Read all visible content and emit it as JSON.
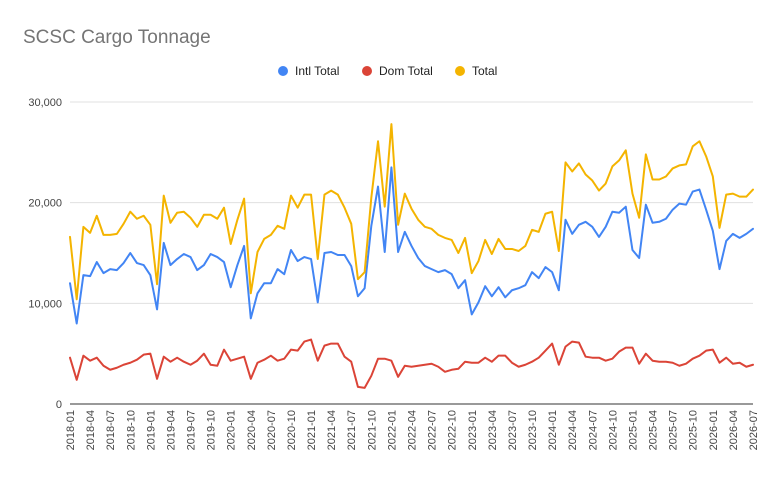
{
  "chart_data": {
    "type": "line",
    "title": "SCSC Cargo Tonnage",
    "xlabel": "",
    "ylabel": "",
    "ylim": [
      0,
      30000
    ],
    "yticks": [
      0,
      10000,
      20000,
      30000
    ],
    "ytick_labels": [
      "0",
      "10,000",
      "20,000",
      "30,000"
    ],
    "grid": true,
    "legend_position": "top-center",
    "x_start": "2018-01",
    "xtick_labels": [
      "2018-01",
      "2018-04",
      "2018-07",
      "2018-10",
      "2019-01",
      "2019-04",
      "2019-07",
      "2019-10",
      "2020-01",
      "2020-04",
      "2020-07",
      "2020-10",
      "2021-01",
      "2021-04",
      "2021-07",
      "2021-10",
      "2022-01",
      "2022-04",
      "2022-07",
      "2022-10",
      "2023-01",
      "2023-04",
      "2023-07",
      "2023-10",
      "2024-01",
      "2024-04",
      "2024-07",
      "2024-10",
      "2025-01",
      "2025-04",
      "2025-07",
      "2025-10",
      "2026-01",
      "2026-04",
      "2026-07"
    ],
    "series": [
      {
        "name": "Intl Total",
        "color": "#4285f4",
        "values": [
          12000,
          8000,
          12800,
          12700,
          14100,
          13000,
          13400,
          13300,
          14000,
          15000,
          14000,
          13800,
          12800,
          9400,
          16000,
          13800,
          14400,
          14900,
          14600,
          13300,
          13800,
          14900,
          14600,
          14100,
          11600,
          13800,
          15700,
          8500,
          11000,
          12000,
          12000,
          13400,
          12900,
          15300,
          14200,
          14600,
          14400,
          10100,
          15000,
          15100,
          14800,
          14800,
          13700,
          10700,
          11500,
          17700,
          21600,
          15100,
          23500,
          15100,
          17100,
          15700,
          14500,
          13700,
          13400,
          13100,
          13300,
          12900,
          11500,
          12300,
          8900,
          10100,
          11700,
          10700,
          11600,
          10600,
          11300,
          11500,
          11800,
          13100,
          12500,
          13600,
          13100,
          11300,
          18300,
          16900,
          17800,
          18100,
          17600,
          16600,
          17600,
          19100,
          19000,
          19600,
          15300,
          14500,
          19800,
          18000,
          18100,
          18400,
          19300,
          19900,
          19800,
          21100,
          21300,
          19300,
          17200,
          13400,
          16200,
          16900,
          16500,
          16900,
          17400
        ]
      },
      {
        "name": "Dom Total",
        "color": "#db4437",
        "values": [
          4600,
          2400,
          4800,
          4300,
          4600,
          3800,
          3400,
          3600,
          3900,
          4100,
          4400,
          4900,
          5000,
          2500,
          4700,
          4200,
          4600,
          4200,
          3900,
          4300,
          5000,
          3900,
          3800,
          5400,
          4300,
          4500,
          4700,
          2500,
          4100,
          4400,
          4800,
          4300,
          4500,
          5400,
          5300,
          6200,
          6400,
          4300,
          5800,
          6000,
          6000,
          4700,
          4200,
          1700,
          1600,
          2800,
          4500,
          4500,
          4300,
          2700,
          3800,
          3700,
          3800,
          3900,
          4000,
          3700,
          3200,
          3400,
          3500,
          4200,
          4100,
          4100,
          4600,
          4200,
          4800,
          4800,
          4100,
          3700,
          3900,
          4200,
          4600,
          5300,
          6000,
          3900,
          5700,
          6200,
          6100,
          4700,
          4600,
          4600,
          4300,
          4500,
          5200,
          5600,
          5600,
          4000,
          5000,
          4300,
          4200,
          4200,
          4100,
          3800,
          4000,
          4500,
          4800,
          5300,
          5400,
          4100,
          4600,
          4000,
          4100,
          3700,
          3900
        ]
      },
      {
        "name": "Total",
        "color": "#f4b400",
        "values": [
          16600,
          10400,
          17600,
          17000,
          18700,
          16800,
          16800,
          16900,
          17900,
          19100,
          18400,
          18700,
          17800,
          11900,
          20700,
          18000,
          19000,
          19100,
          18500,
          17600,
          18800,
          18800,
          18400,
          19500,
          15900,
          18300,
          20400,
          11000,
          15100,
          16400,
          16800,
          17700,
          17400,
          20700,
          19500,
          20800,
          20800,
          14400,
          20800,
          21200,
          20800,
          19500,
          17900,
          12400,
          13100,
          20500,
          26100,
          19600,
          27800,
          17800,
          20900,
          19400,
          18300,
          17600,
          17400,
          16800,
          16500,
          16300,
          15000,
          16500,
          13000,
          14200,
          16300,
          14900,
          16400,
          15400,
          15400,
          15200,
          15700,
          17300,
          17100,
          18900,
          19100,
          15200,
          24000,
          23100,
          23900,
          22800,
          22200,
          21200,
          21900,
          23600,
          24200,
          25200,
          20900,
          18500,
          24800,
          22300,
          22300,
          22600,
          23400,
          23700,
          23800,
          25600,
          26100,
          24600,
          22600,
          17500,
          20800,
          20900,
          20600,
          20600,
          21300
        ]
      }
    ]
  }
}
